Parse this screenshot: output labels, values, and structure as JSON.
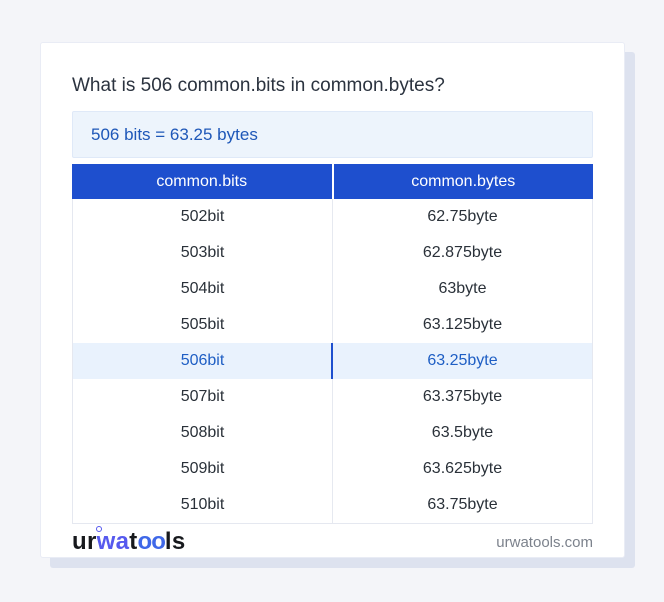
{
  "main": {
    "title": "What is 506 common.bits in common.bytes?",
    "answer": "506 bits = 63.25 bytes"
  },
  "table": {
    "headers": [
      "common.bits",
      "common.bytes"
    ],
    "rows": [
      {
        "bits": "502bit",
        "bytes": "62.75byte",
        "highlight": false
      },
      {
        "bits": "503bit",
        "bytes": "62.875byte",
        "highlight": false
      },
      {
        "bits": "504bit",
        "bytes": "63byte",
        "highlight": false
      },
      {
        "bits": "505bit",
        "bytes": "63.125byte",
        "highlight": false
      },
      {
        "bits": "506bit",
        "bytes": "63.25byte",
        "highlight": true
      },
      {
        "bits": "507bit",
        "bytes": "63.375byte",
        "highlight": false
      },
      {
        "bits": "508bit",
        "bytes": "63.5byte",
        "highlight": false
      },
      {
        "bits": "509bit",
        "bytes": "63.625byte",
        "highlight": false
      },
      {
        "bits": "510bit",
        "bytes": "63.75byte",
        "highlight": false
      }
    ]
  },
  "footer": {
    "logo": {
      "ur": "ur",
      "wa": "wa",
      "t": "t",
      "oo": "oo",
      "ls": "ls"
    },
    "domain": "urwatools.com"
  },
  "icons": {
    "logo_ring": "ring-icon"
  },
  "colors": {
    "page_background": "#f4f5f9",
    "header_blue": "#1e4fce",
    "answer_background": "#edf4fc",
    "answer_text": "#1e57b8",
    "highlight_background": "#e9f2fd",
    "highlight_text": "#1e5ec4",
    "body_text": "#2a3139",
    "title_text": "#2b333f",
    "logo_dark": "#17191d",
    "logo_blue": "#5659ee",
    "domain_text": "#7c828c"
  }
}
